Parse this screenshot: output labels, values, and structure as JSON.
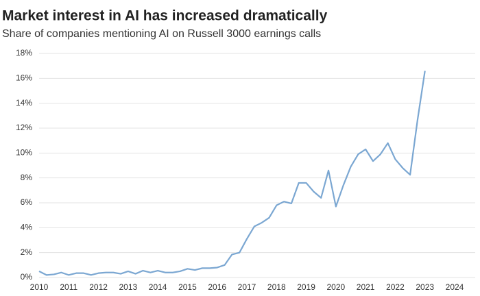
{
  "chart_data": {
    "type": "line",
    "title": "Market interest in AI has increased dramatically",
    "subtitle": "Share of companies mentioning AI on Russell 3000 earnings calls",
    "x": [
      2010,
      2010.25,
      2010.5,
      2010.75,
      2011,
      2011.25,
      2011.5,
      2011.75,
      2012,
      2012.25,
      2012.5,
      2012.75,
      2013,
      2013.25,
      2013.5,
      2013.75,
      2014,
      2014.25,
      2014.5,
      2014.75,
      2015,
      2015.25,
      2015.5,
      2015.75,
      2016,
      2016.25,
      2016.5,
      2016.75,
      2017,
      2017.25,
      2017.5,
      2017.75,
      2018,
      2018.25,
      2018.5,
      2018.75,
      2019,
      2019.25,
      2019.5,
      2019.75,
      2020,
      2020.25,
      2020.5,
      2020.75,
      2021,
      2021.25,
      2021.5,
      2021.75,
      2022,
      2022.25,
      2022.5,
      2022.75,
      2023
    ],
    "series": [
      {
        "name": "Share of companies mentioning AI",
        "color": "#7ba7d2",
        "values": [
          0.5,
          0.2,
          0.25,
          0.4,
          0.2,
          0.35,
          0.35,
          0.2,
          0.35,
          0.4,
          0.4,
          0.3,
          0.5,
          0.3,
          0.55,
          0.4,
          0.55,
          0.4,
          0.4,
          0.5,
          0.7,
          0.6,
          0.75,
          0.75,
          0.8,
          1.0,
          1.85,
          2.0,
          3.1,
          4.1,
          4.4,
          4.8,
          5.8,
          6.1,
          5.95,
          7.6,
          7.6,
          6.9,
          6.4,
          8.6,
          5.7,
          7.4,
          8.9,
          9.9,
          10.3,
          9.35,
          9.9,
          10.8,
          9.5,
          8.8,
          8.25,
          12.65,
          16.6
        ]
      }
    ],
    "xlim": [
      2010,
      2024
    ],
    "xticks": [
      2010,
      2011,
      2012,
      2013,
      2014,
      2015,
      2016,
      2017,
      2018,
      2019,
      2020,
      2021,
      2022,
      2023,
      2024
    ],
    "ylim": [
      0,
      18
    ],
    "yticks": [
      {
        "value": 0,
        "label": "0%"
      },
      {
        "value": 2,
        "label": "2%"
      },
      {
        "value": 4,
        "label": "4%"
      },
      {
        "value": 6,
        "label": "6%"
      },
      {
        "value": 8,
        "label": "8%"
      },
      {
        "value": 10,
        "label": "10%"
      },
      {
        "value": 12,
        "label": "12%"
      },
      {
        "value": 14,
        "label": "14%"
      },
      {
        "value": 16,
        "label": "16%"
      },
      {
        "value": 18,
        "label": "18%"
      }
    ],
    "grid": true
  }
}
